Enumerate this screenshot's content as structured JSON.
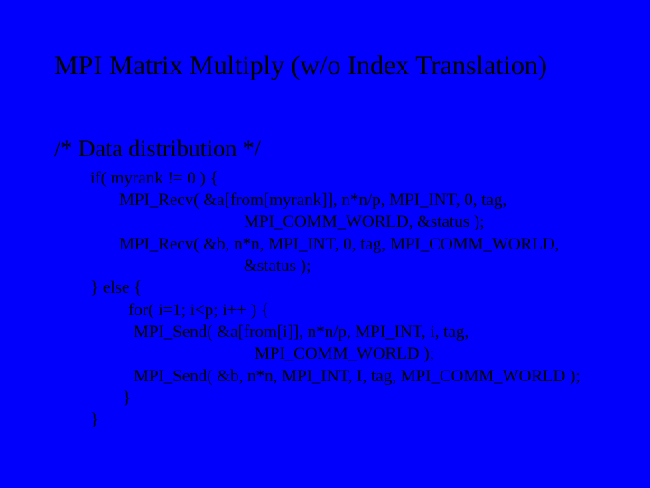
{
  "colors": {
    "background": "#0000fc",
    "text": "#000000"
  },
  "typography": {
    "family": "Times New Roman",
    "title_fontsize": 30,
    "section_fontsize": 26,
    "code_fontsize": 19
  },
  "title": "MPI Matrix Multiply (w/o Index Translation)",
  "section_comment": "/* Data distribution */",
  "code": {
    "l0": "if( myrank != 0 ) {",
    "l1": "MPI_Recv( &a[from[myrank]], n*n/p, MPI_INT, 0, tag,",
    "l2": "MPI_COMM_WORLD, &status );",
    "l3": "MPI_Recv( &b, n*n, MPI_INT, 0, tag, MPI_COMM_WORLD,",
    "l4": "&status );",
    "l5": "} else {",
    "l6": "for( i=1; i<p; i++ ) {",
    "l7": "MPI_Send( &a[from[i]], n*n/p, MPI_INT, i, tag,",
    "l8": "MPI_COMM_WORLD );",
    "l9": "MPI_Send( &b, n*n, MPI_INT, I, tag, MPI_COMM_WORLD );",
    "l10": "}",
    "l11": "}"
  }
}
